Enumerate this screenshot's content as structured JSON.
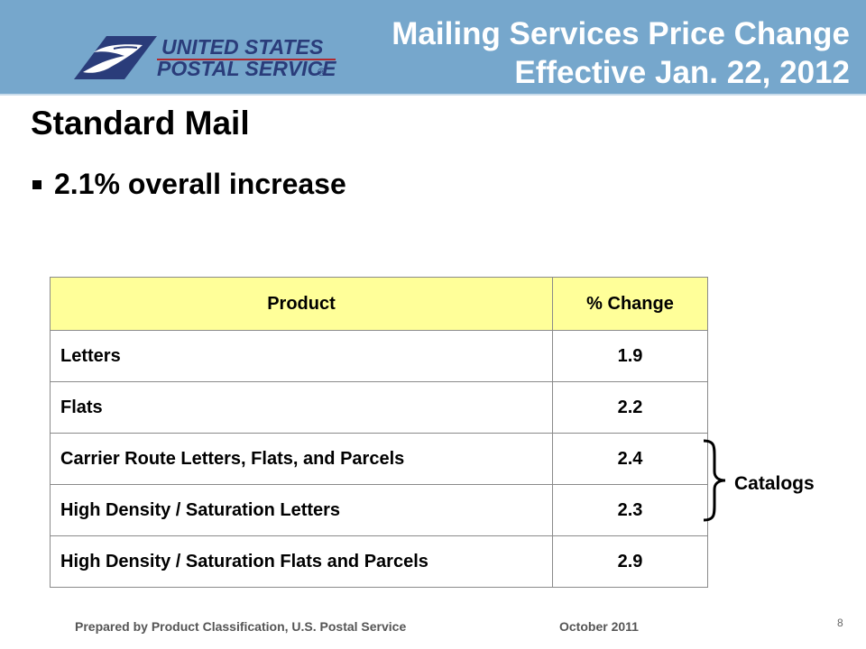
{
  "header": {
    "logo_line1": "UNITED STATES",
    "logo_line2": "POSTAL SERVICE",
    "logo_mark": "®",
    "title_line1": "Mailing Services Price Change",
    "title_line2": "Effective Jan. 22, 2012",
    "background_color": "#76a7cc",
    "logo_blue": "#2a3c7a"
  },
  "page": {
    "title": "Standard Mail",
    "bullet": "2.1% overall increase"
  },
  "table": {
    "header_color": "#ffff99",
    "headers": [
      "Product",
      "% Change"
    ],
    "rows": [
      {
        "product": "Letters",
        "change": "1.9"
      },
      {
        "product": "Flats",
        "change": "2.2"
      },
      {
        "product": "Carrier Route Letters, Flats, and Parcels",
        "change": "2.4"
      },
      {
        "product": "High Density / Saturation Letters",
        "change": "2.3"
      },
      {
        "product": "High Density / Saturation Flats and Parcels",
        "change": "2.9"
      }
    ]
  },
  "annotation": {
    "label": "Catalogs",
    "icon": "right-curly-brace-icon"
  },
  "footer": {
    "prepared_by": "Prepared by Product Classification, U.S. Postal Service",
    "date": "October 2011",
    "page_number": "8"
  }
}
